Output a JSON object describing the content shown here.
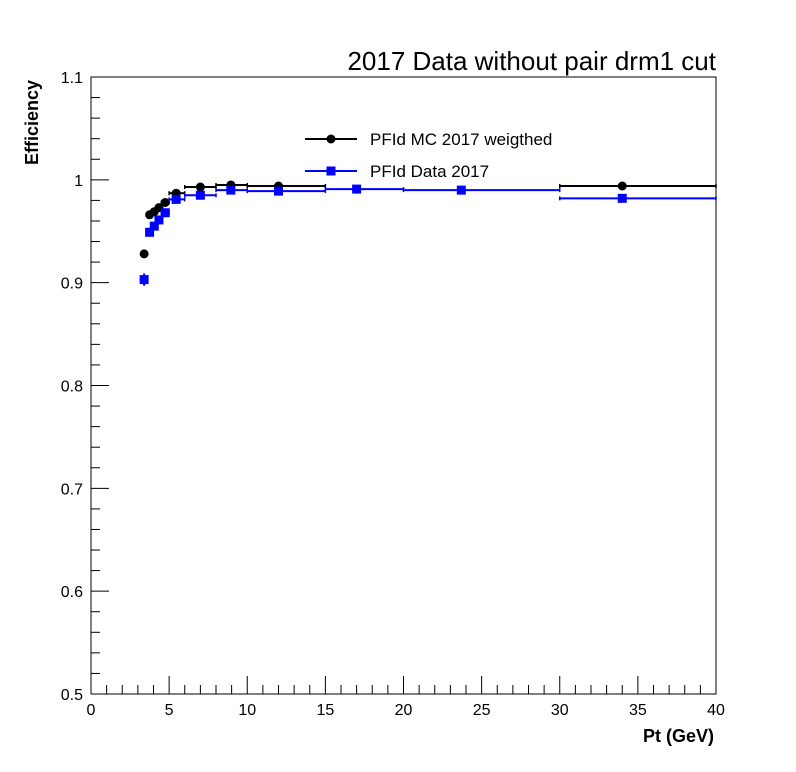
{
  "chart_data": {
    "type": "scatter",
    "title": "2017 Data without pair drm1 cut",
    "xlabel": "Pt (GeV)",
    "ylabel": "Efficiency",
    "xlim": [
      0,
      40
    ],
    "ylim": [
      0.5,
      1.1
    ],
    "x_ticks": [
      "0",
      "5",
      "10",
      "15",
      "20",
      "25",
      "30",
      "35",
      "40"
    ],
    "y_ticks": [
      "0.5",
      "0.6",
      "0.7",
      "0.8",
      "0.9",
      "1",
      "1.1"
    ],
    "grid": false,
    "legend_position": "top-center",
    "series": [
      {
        "name": "PFId MC 2017 weigthed",
        "color": "#000000",
        "marker": "circle",
        "points": [
          {
            "x": 3.4,
            "xlo": 3.2,
            "xhi": 3.6,
            "y": 0.928,
            "err": 0.004
          },
          {
            "x": 3.75,
            "xlo": 3.6,
            "xhi": 3.9,
            "y": 0.966,
            "err": 0.003
          },
          {
            "x": 4.05,
            "xlo": 3.9,
            "xhi": 4.2,
            "y": 0.969,
            "err": 0.002
          },
          {
            "x": 4.35,
            "xlo": 4.2,
            "xhi": 4.5,
            "y": 0.973,
            "err": 0.002
          },
          {
            "x": 4.75,
            "xlo": 4.5,
            "xhi": 5.0,
            "y": 0.978,
            "err": 0.002
          },
          {
            "x": 5.45,
            "xlo": 5.0,
            "xhi": 6.0,
            "y": 0.987,
            "err": 0.002
          },
          {
            "x": 7.0,
            "xlo": 6.0,
            "xhi": 8.0,
            "y": 0.993,
            "err": 0.001
          },
          {
            "x": 8.95,
            "xlo": 8.0,
            "xhi": 10.0,
            "y": 0.995,
            "err": 0.001
          },
          {
            "x": 12.0,
            "xlo": 10.0,
            "xhi": 15.0,
            "y": 0.994,
            "err": 0.001
          },
          {
            "x": 34.0,
            "xlo": 30.0,
            "xhi": 40.0,
            "y": 0.994,
            "err": 0.002
          }
        ]
      },
      {
        "name": "PFId Data 2017",
        "color": "#0000ff",
        "marker": "square",
        "points": [
          {
            "x": 3.4,
            "xlo": 3.2,
            "xhi": 3.6,
            "y": 0.903,
            "err": 0.006
          },
          {
            "x": 3.75,
            "xlo": 3.6,
            "xhi": 3.9,
            "y": 0.949,
            "err": 0.004
          },
          {
            "x": 4.05,
            "xlo": 3.9,
            "xhi": 4.2,
            "y": 0.955,
            "err": 0.003
          },
          {
            "x": 4.35,
            "xlo": 4.2,
            "xhi": 4.5,
            "y": 0.961,
            "err": 0.003
          },
          {
            "x": 4.75,
            "xlo": 4.5,
            "xhi": 5.0,
            "y": 0.968,
            "err": 0.002
          },
          {
            "x": 5.45,
            "xlo": 5.0,
            "xhi": 6.0,
            "y": 0.981,
            "err": 0.002
          },
          {
            "x": 7.0,
            "xlo": 6.0,
            "xhi": 8.0,
            "y": 0.985,
            "err": 0.002
          },
          {
            "x": 8.95,
            "xlo": 8.0,
            "xhi": 10.0,
            "y": 0.99,
            "err": 0.002
          },
          {
            "x": 12.0,
            "xlo": 10.0,
            "xhi": 15.0,
            "y": 0.989,
            "err": 0.001
          },
          {
            "x": 17.0,
            "xlo": 15.0,
            "xhi": 20.0,
            "y": 0.991,
            "err": 0.001
          },
          {
            "x": 23.7,
            "xlo": 20.0,
            "xhi": 30.0,
            "y": 0.99,
            "err": 0.002
          },
          {
            "x": 34.0,
            "xlo": 30.0,
            "xhi": 40.0,
            "y": 0.982,
            "err": 0.004
          }
        ]
      }
    ]
  }
}
